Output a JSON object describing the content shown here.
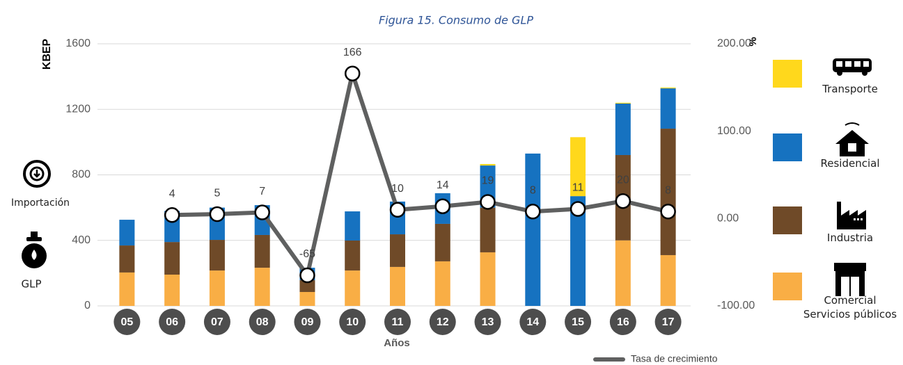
{
  "chart_data": {
    "type": "bar",
    "stacked": true,
    "title": "Figura 15. Consumo de GLP",
    "x_label": "Años",
    "y_label": "KBEP",
    "y2_label": "%",
    "categories": [
      "05",
      "06",
      "07",
      "08",
      "09",
      "10",
      "11",
      "12",
      "13",
      "14",
      "15",
      "16",
      "17"
    ],
    "series": [
      {
        "name": "Transporte",
        "color": "#FFD81C",
        "values": [
          0,
          0,
          0,
          0,
          0,
          0,
          0,
          0,
          9,
          0,
          360,
          5,
          5
        ]
      },
      {
        "name": "Residencial",
        "color": "#1672C0",
        "values": [
          157,
          190,
          197,
          182,
          76,
          178,
          200,
          187,
          257,
          930,
          670,
          314,
          246
        ]
      },
      {
        "name": "Industria",
        "color": "#6F4A28",
        "values": [
          165,
          199,
          187,
          200,
          72,
          183,
          199,
          229,
          273,
          0,
          0,
          521,
          772
        ]
      },
      {
        "name": "Comercial\nServicios públicos",
        "color": "#F9AE45",
        "values": [
          204,
          191,
          216,
          233,
          85,
          216,
          238,
          272,
          327,
          0,
          0,
          400,
          310
        ]
      },
      {
        "name": "Tasa de crecimiento",
        "type": "line",
        "axis": "y2",
        "color": "#5F6060",
        "values": [
          null,
          4,
          5,
          7,
          -65,
          166,
          10,
          14,
          19,
          8,
          11,
          20,
          8
        ]
      }
    ],
    "ylim": [
      0,
      1600
    ],
    "yticks": [
      0,
      400,
      800,
      1200,
      1600
    ],
    "y2lim": [
      -100,
      200
    ],
    "y2ticks": [
      {
        "value": -100,
        "label": "-100.00"
      },
      {
        "value": 0,
        "label": "0.00"
      },
      {
        "value": 100,
        "label": "100.00"
      },
      {
        "value": 200,
        "label": "200.00"
      }
    ],
    "grid": true,
    "legend": "right"
  },
  "side_labels": [
    "Importación",
    "GLP"
  ]
}
